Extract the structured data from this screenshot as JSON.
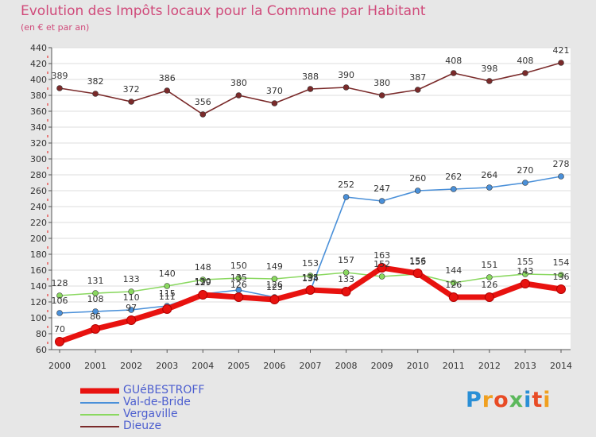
{
  "title": "Evolution des Impôts locaux pour la Commune par Habitant",
  "subtitle": "(en € et par an)",
  "logo": {
    "text": "Proxiti",
    "colors": [
      "#2a8fd6",
      "#f0a020",
      "#e84b25",
      "#5cb85c",
      "#2a8fd6",
      "#e84b25",
      "#f0a020"
    ]
  },
  "chart_data": {
    "type": "line",
    "title": "Evolution des Impôts locaux pour la Commune par Habitant",
    "subtitle": "(en € et par an)",
    "xlabel": "",
    "ylabel": "",
    "x": [
      "2000",
      "2001",
      "2002",
      "2003",
      "2004",
      "2005",
      "2006",
      "2007",
      "2008",
      "2009",
      "2010",
      "2011",
      "2012",
      "2013",
      "2014"
    ],
    "ylim": [
      60,
      440
    ],
    "yticks": [
      60,
      80,
      100,
      120,
      140,
      160,
      180,
      200,
      220,
      240,
      260,
      280,
      300,
      320,
      340,
      360,
      380,
      400,
      420,
      440
    ],
    "grid": true,
    "legend_position": "bottom-left",
    "series": [
      {
        "name": "GUéBESTROFF",
        "color": "#e8120f",
        "values": [
          70,
          86,
          97,
          111,
          129,
          126,
          123,
          135,
          133,
          163,
          156,
          126,
          126,
          143,
          136
        ]
      },
      {
        "name": "Val-de-Bride",
        "color": "#4a90d9",
        "values": [
          106,
          108,
          110,
          115,
          130,
          135,
          126,
          134,
          252,
          247,
          260,
          262,
          264,
          270,
          278
        ]
      },
      {
        "name": "Vergaville",
        "color": "#8ad860",
        "values": [
          128,
          131,
          133,
          140,
          148,
          150,
          149,
          153,
          157,
          152,
          155,
          144,
          151,
          155,
          154
        ]
      },
      {
        "name": "Dieuze",
        "color": "#7a2a2a",
        "values": [
          389,
          382,
          372,
          386,
          356,
          380,
          370,
          388,
          390,
          380,
          387,
          408,
          398,
          408,
          421
        ]
      }
    ]
  }
}
